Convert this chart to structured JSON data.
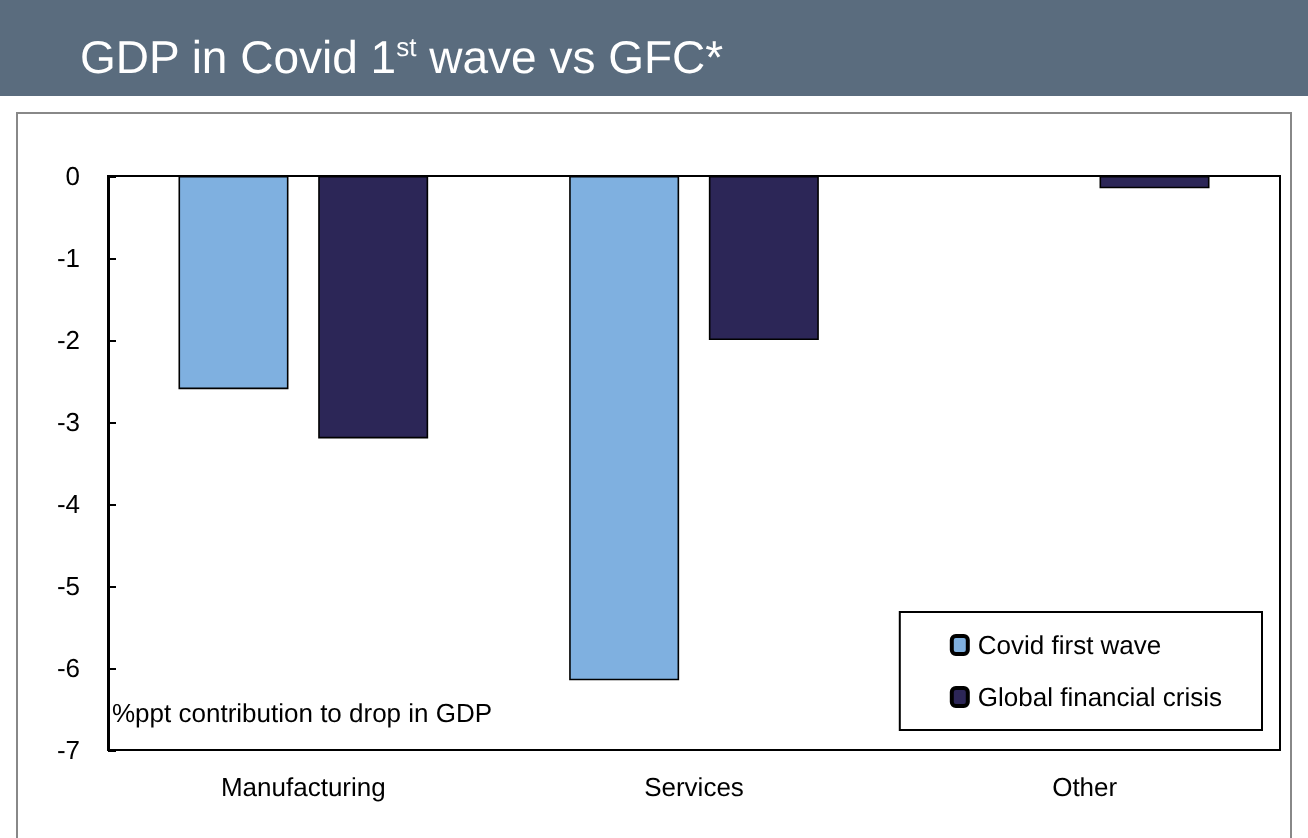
{
  "chart_data": {
    "type": "bar",
    "title": "GDP in Covid 1$^{st}$ wave vs GFC*",
    "categories": [
      "Manufacturing",
      "Services",
      "Other"
    ],
    "series": [
      {
        "name": "Covid first wave",
        "color": "#7fb0e0",
        "values": [
          -2.6,
          -6.15,
          null
        ]
      },
      {
        "name": "Global financial crisis",
        "color": "#2c2657",
        "values": [
          -3.2,
          -2.0,
          -0.15
        ]
      }
    ],
    "ylim": [
      -7,
      0
    ],
    "yticks": [
      -7,
      -6,
      -5,
      -4,
      -3,
      -2,
      -1,
      0
    ],
    "annotations": [
      "%ppt contribution to drop in GDP"
    ],
    "grid": false,
    "legend": "bottom right"
  }
}
